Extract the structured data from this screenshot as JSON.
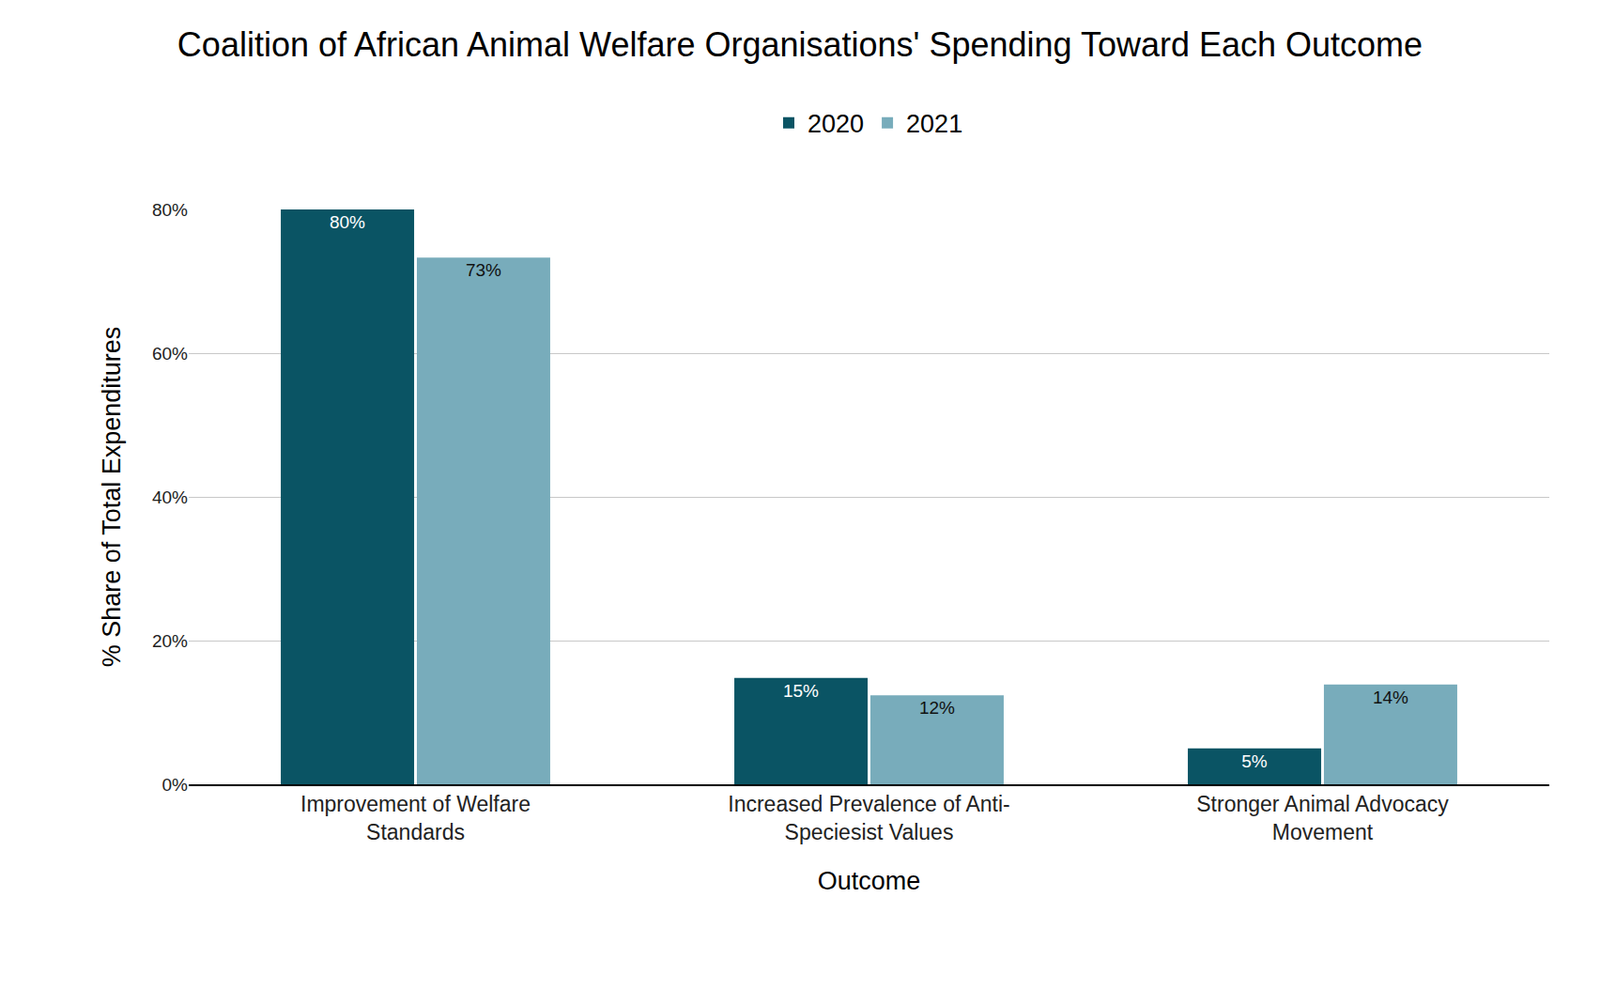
{
  "chart_data": {
    "type": "bar",
    "title": "Coalition of African Animal Welfare Organisations' Spending Toward Each Outcome",
    "x_label": "Outcome",
    "y_label": "% Share of Total Expenditures",
    "categories": [
      "Improvement of Welfare Standards",
      "Increased Prevalence of Anti-Speciesist Values",
      "Stronger Animal Advocacy Movement"
    ],
    "series": [
      {
        "name": "2020",
        "color": "#0a5464",
        "values": [
          80,
          14.8,
          5
        ],
        "value_labels": [
          "80%",
          "15%",
          "5%"
        ]
      },
      {
        "name": "2021",
        "color": "#78acbb",
        "values": [
          73.3,
          12.4,
          13.9
        ],
        "value_labels": [
          "73%",
          "12%",
          "14%"
        ]
      }
    ],
    "ylim": [
      0,
      80
    ],
    "yticks": [
      {
        "value": 0,
        "label": "0%"
      },
      {
        "value": 20,
        "label": "20%"
      },
      {
        "value": 40,
        "label": "40%"
      },
      {
        "value": 60,
        "label": "60%"
      },
      {
        "value": 80,
        "label": "80%"
      }
    ],
    "grid": true,
    "legend": "top",
    "data_labels": true
  }
}
